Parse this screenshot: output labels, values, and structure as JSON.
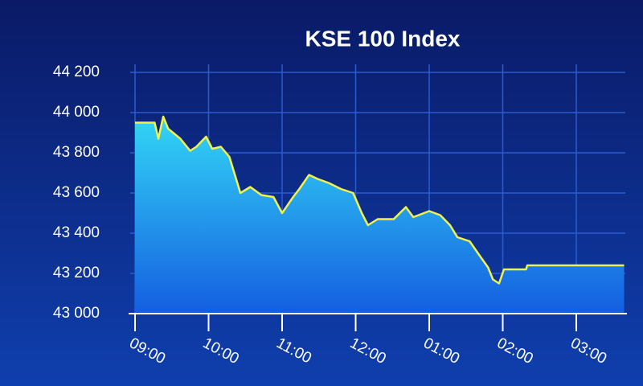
{
  "chart_data": {
    "type": "area",
    "title": "KSE 100 Index",
    "x": [
      0,
      16,
      19,
      23,
      27,
      37,
      45,
      50,
      58,
      63,
      70,
      77,
      86,
      94,
      103,
      113,
      120,
      129,
      134,
      142,
      149,
      158,
      168,
      178,
      185,
      190,
      198,
      211,
      221,
      227,
      240,
      249,
      257,
      263,
      273,
      281,
      288,
      292,
      297,
      301,
      319,
      320,
      399
    ],
    "series": [
      {
        "name": "KSE 100",
        "color": "#f2f24a",
        "values": [
          43950,
          43950,
          43870,
          43980,
          43920,
          43870,
          43810,
          43830,
          43880,
          43820,
          43830,
          43780,
          43600,
          43630,
          43590,
          43580,
          43500,
          43580,
          43620,
          43690,
          43670,
          43650,
          43620,
          43600,
          43500,
          43440,
          43470,
          43470,
          43530,
          43480,
          43510,
          43490,
          43440,
          43380,
          43360,
          43290,
          43230,
          43170,
          43150,
          43220,
          43220,
          43240,
          43240
        ]
      }
    ],
    "xlim": [
      0,
      400
    ],
    "xticks": [
      {
        "value": 0,
        "label": "09:00"
      },
      {
        "value": 60,
        "label": "10:00"
      },
      {
        "value": 120,
        "label": "11:00"
      },
      {
        "value": 180,
        "label": "12:00"
      },
      {
        "value": 240,
        "label": "01:00"
      },
      {
        "value": 300,
        "label": "02:00"
      },
      {
        "value": 360,
        "label": "03:00"
      }
    ],
    "ylim": [
      43000,
      44200
    ],
    "yticks": [
      {
        "value": 43000,
        "label": "43 000"
      },
      {
        "value": 43200,
        "label": "43 200"
      },
      {
        "value": 43400,
        "label": "43 400"
      },
      {
        "value": 43600,
        "label": "43 600"
      },
      {
        "value": 43800,
        "label": "43 800"
      },
      {
        "value": 44000,
        "label": "44 000"
      },
      {
        "value": 44200,
        "label": "44 200"
      }
    ],
    "grid": true
  }
}
